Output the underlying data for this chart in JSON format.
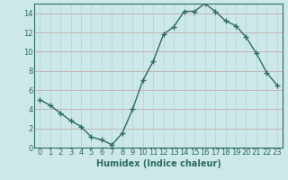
{
  "xlabel": "Humidex (Indice chaleur)",
  "ylabel": "",
  "x_values": [
    0,
    1,
    2,
    3,
    4,
    5,
    6,
    7,
    8,
    9,
    10,
    11,
    12,
    13,
    14,
    15,
    16,
    17,
    18,
    19,
    20,
    21,
    22,
    23
  ],
  "y_values": [
    5.0,
    4.4,
    3.6,
    2.8,
    2.2,
    1.1,
    0.8,
    0.3,
    1.5,
    4.0,
    7.0,
    9.0,
    11.8,
    12.6,
    14.2,
    14.2,
    15.0,
    14.2,
    13.2,
    12.7,
    11.5,
    9.8,
    7.8,
    6.5
  ],
  "line_color": "#2e6b5e",
  "marker": "+",
  "marker_size": 4,
  "line_width": 1.0,
  "bg_color": "#cce8e8",
  "grid_color_h": "#c8a8a8",
  "grid_color_v": "#b8d4d4",
  "ylim": [
    0,
    15
  ],
  "xlim": [
    -0.5,
    23.5
  ],
  "yticks": [
    0,
    2,
    4,
    6,
    8,
    10,
    12,
    14
  ],
  "xtick_labels": [
    "0",
    "1",
    "2",
    "3",
    "4",
    "5",
    "6",
    "7",
    "8",
    "9",
    "10",
    "11",
    "12",
    "13",
    "14",
    "15",
    "16",
    "17",
    "18",
    "19",
    "20",
    "21",
    "22",
    "23"
  ],
  "tick_color": "#2e6b5e",
  "label_fontsize": 6.5,
  "tick_fontsize": 6.0,
  "xlabel_fontsize": 7.0
}
